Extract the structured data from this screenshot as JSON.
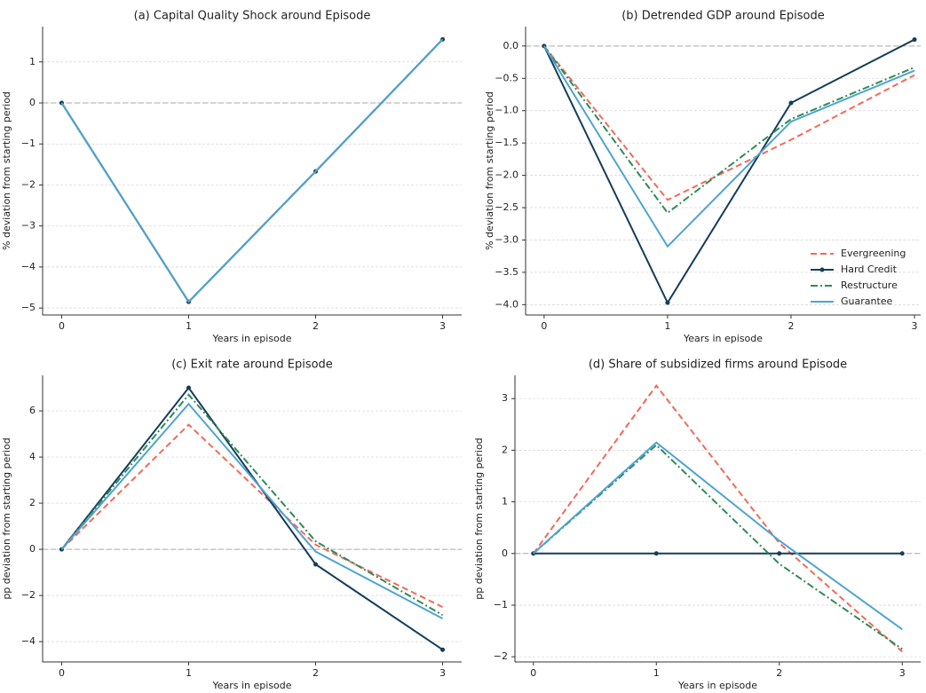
{
  "chart_data": [
    {
      "type": "line",
      "title": "(a) Capital Quality Shock around Episode",
      "xlabel": "Years in episode",
      "ylabel": "% deviation from starting period",
      "x": [
        0,
        1,
        2,
        3
      ],
      "xlim": [
        -0.15,
        3.15
      ],
      "xticks": [
        0,
        1,
        2,
        3
      ],
      "ylim": [
        -5.17,
        1.86
      ],
      "yticks": [
        {
          "value": -5,
          "label": "−5"
        },
        {
          "value": -4,
          "label": "−4"
        },
        {
          "value": -3,
          "label": "−3"
        },
        {
          "value": -2,
          "label": "−2"
        },
        {
          "value": -1,
          "label": "−1"
        },
        0,
        1
      ],
      "grid": true,
      "series": [
        {
          "name": "Evergreening",
          "color": "#f4695a",
          "linestyle": "dashed",
          "marker": false,
          "values": [
            0,
            -4.85,
            -1.67,
            1.55
          ]
        },
        {
          "name": "Hard Credit",
          "color": "#143d59",
          "linestyle": "solid",
          "marker": true,
          "values": [
            0,
            -4.85,
            -1.67,
            1.55
          ]
        },
        {
          "name": "Restructure",
          "color": "#2e8b57",
          "linestyle": "dashdot",
          "marker": false,
          "values": [
            0,
            -4.85,
            -1.67,
            1.55
          ]
        },
        {
          "name": "Guarantee",
          "color": "#4fa3d1",
          "linestyle": "solid",
          "marker": false,
          "values": [
            0,
            -4.85,
            -1.67,
            1.55
          ]
        }
      ]
    },
    {
      "type": "line",
      "title": "(b) Detrended GDP around Episode",
      "xlabel": "Years in episode",
      "ylabel": "% deviation from starting period",
      "x": [
        0,
        1,
        2,
        3
      ],
      "xlim": [
        -0.15,
        3.05
      ],
      "xticks": [
        0,
        1,
        2,
        3
      ],
      "ylim": [
        -4.16,
        0.3
      ],
      "yticks": [
        {
          "value": -4,
          "label": "−4.0"
        },
        {
          "value": -3.5,
          "label": "−3.5"
        },
        {
          "value": -3,
          "label": "−3.0"
        },
        {
          "value": -2.5,
          "label": "−2.5"
        },
        {
          "value": -2,
          "label": "−2.0"
        },
        {
          "value": -1.5,
          "label": "−1.5"
        },
        {
          "value": -1,
          "label": "−1.0"
        },
        {
          "value": -0.5,
          "label": "−0.5"
        },
        {
          "value": 0,
          "label": "0.0"
        }
      ],
      "grid": true,
      "legend": "lower right",
      "series": [
        {
          "name": "Evergreening",
          "color": "#f4695a",
          "linestyle": "dashed",
          "marker": false,
          "values": [
            0,
            -2.38,
            -1.45,
            -0.45
          ]
        },
        {
          "name": "Hard Credit",
          "color": "#143d59",
          "linestyle": "solid",
          "marker": true,
          "values": [
            0,
            -3.97,
            -0.88,
            0.1
          ]
        },
        {
          "name": "Restructure",
          "color": "#2e8b57",
          "linestyle": "dashdot",
          "marker": false,
          "values": [
            0,
            -2.58,
            -1.13,
            -0.33
          ]
        },
        {
          "name": "Guarantee",
          "color": "#4fa3d1",
          "linestyle": "solid",
          "marker": false,
          "values": [
            0,
            -3.1,
            -1.17,
            -0.38
          ]
        }
      ]
    },
    {
      "type": "line",
      "title": "(c) Exit rate around Episode",
      "xlabel": "Years in episode",
      "ylabel": "pp deviation from starting period",
      "x": [
        0,
        1,
        2,
        3
      ],
      "xlim": [
        -0.15,
        3.15
      ],
      "xticks": [
        0,
        1,
        2,
        3
      ],
      "ylim": [
        -4.88,
        7.54
      ],
      "yticks": [
        {
          "value": -4,
          "label": "−4"
        },
        {
          "value": -2,
          "label": "−2"
        },
        0,
        2,
        4,
        6
      ],
      "grid": true,
      "series": [
        {
          "name": "Evergreening",
          "color": "#f4695a",
          "linestyle": "dashed",
          "marker": false,
          "values": [
            0,
            5.4,
            0.2,
            -2.5
          ]
        },
        {
          "name": "Hard Credit",
          "color": "#143d59",
          "linestyle": "solid",
          "marker": true,
          "values": [
            0,
            7.0,
            -0.65,
            -4.35
          ]
        },
        {
          "name": "Restructure",
          "color": "#2e8b57",
          "linestyle": "dashdot",
          "marker": false,
          "values": [
            0,
            6.7,
            0.35,
            -2.85
          ]
        },
        {
          "name": "Guarantee",
          "color": "#4fa3d1",
          "linestyle": "solid",
          "marker": false,
          "values": [
            0,
            6.3,
            -0.1,
            -3.0
          ]
        }
      ]
    },
    {
      "type": "line",
      "title": "(d) Share of subsidized firms around Episode",
      "xlabel": "Years in episode",
      "ylabel": "pp deviation from starting period",
      "x": [
        0,
        1,
        2,
        3
      ],
      "xlim": [
        -0.15,
        3.15
      ],
      "xticks": [
        0,
        1,
        2,
        3
      ],
      "ylim": [
        -2.1,
        3.45
      ],
      "yticks": [
        {
          "value": -2,
          "label": "−2"
        },
        {
          "value": -1,
          "label": "−1"
        },
        0,
        1,
        2,
        3
      ],
      "grid": true,
      "series": [
        {
          "name": "Evergreening",
          "color": "#f4695a",
          "linestyle": "dashed",
          "marker": false,
          "values": [
            0,
            3.25,
            0.2,
            -1.9
          ]
        },
        {
          "name": "Hard Credit",
          "color": "#143d59",
          "linestyle": "solid",
          "marker": true,
          "values": [
            0,
            0,
            0,
            0
          ]
        },
        {
          "name": "Restructure",
          "color": "#2e8b57",
          "linestyle": "dashdot",
          "marker": false,
          "values": [
            0,
            2.1,
            -0.2,
            -1.85
          ]
        },
        {
          "name": "Guarantee",
          "color": "#4fa3d1",
          "linestyle": "solid",
          "marker": false,
          "values": [
            0,
            2.15,
            0.25,
            -1.47
          ]
        }
      ]
    }
  ]
}
